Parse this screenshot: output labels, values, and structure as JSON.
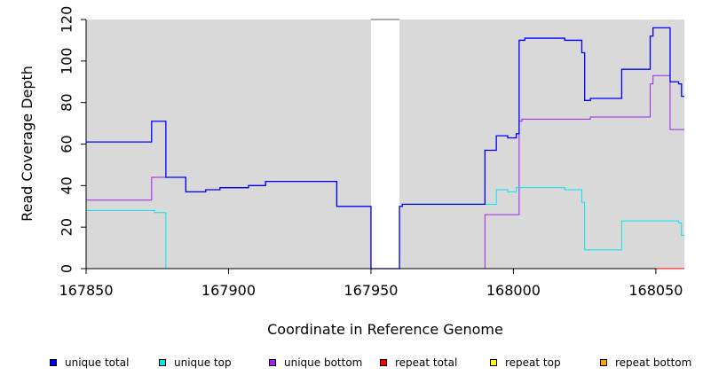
{
  "chart_data": {
    "type": "line",
    "title": "",
    "xlabel": "Coordinate in Reference Genome",
    "ylabel": "Read Coverage Depth",
    "xlim": [
      167850,
      168060
    ],
    "ylim": [
      0,
      120
    ],
    "x_ticks": [
      167850,
      167900,
      167950,
      168000,
      168050
    ],
    "y_ticks": [
      0,
      20,
      40,
      60,
      80,
      100,
      120
    ],
    "background_color": "#d9d9d9",
    "gap_region": [
      167950,
      167960
    ],
    "grid": false,
    "legend_position": "bottom",
    "series": [
      {
        "name": "unique total",
        "color": "#0000ff",
        "steps": [
          [
            167850,
            61
          ],
          [
            167873,
            71
          ],
          [
            167878,
            44
          ],
          [
            167885,
            37
          ],
          [
            167892,
            38
          ],
          [
            167897,
            39
          ],
          [
            167907,
            40
          ],
          [
            167913,
            42
          ],
          [
            167938,
            30
          ],
          [
            167950,
            0
          ],
          [
            167960,
            30
          ],
          [
            167961,
            31
          ],
          [
            167990,
            57
          ],
          [
            167994,
            64
          ],
          [
            167998,
            63
          ],
          [
            168001,
            65
          ],
          [
            168002,
            110
          ],
          [
            168004,
            111
          ],
          [
            168018,
            110
          ],
          [
            168024,
            104
          ],
          [
            168025,
            81
          ],
          [
            168027,
            82
          ],
          [
            168038,
            96
          ],
          [
            168048,
            112
          ],
          [
            168049,
            116
          ],
          [
            168055,
            90
          ],
          [
            168058,
            89
          ],
          [
            168059,
            83
          ]
        ],
        "x_end": 168060
      },
      {
        "name": "unique top",
        "color": "#00e5ee",
        "steps": [
          [
            167850,
            28
          ],
          [
            167874,
            27
          ],
          [
            167878,
            0
          ],
          [
            167960,
            30
          ],
          [
            167961,
            31
          ],
          [
            167990,
            31
          ],
          [
            167994,
            38
          ],
          [
            167998,
            37
          ],
          [
            168001,
            39
          ],
          [
            168018,
            38
          ],
          [
            168024,
            32
          ],
          [
            168025,
            9
          ],
          [
            168038,
            23
          ],
          [
            168058,
            22
          ],
          [
            168059,
            16
          ]
        ],
        "x_end": 168060
      },
      {
        "name": "unique bottom",
        "color": "#a020f0",
        "steps": [
          [
            167850,
            33
          ],
          [
            167873,
            44
          ],
          [
            167878,
            44
          ],
          [
            167885,
            37
          ],
          [
            167892,
            38
          ],
          [
            167897,
            39
          ],
          [
            167907,
            40
          ],
          [
            167913,
            42
          ],
          [
            167938,
            30
          ],
          [
            167950,
            0
          ],
          [
            167990,
            26
          ],
          [
            168002,
            71
          ],
          [
            168003,
            72
          ],
          [
            168027,
            73
          ],
          [
            168048,
            89
          ],
          [
            168049,
            93
          ],
          [
            168055,
            67
          ]
        ],
        "x_end": 168060
      },
      {
        "name": "repeat total",
        "color": "#ff0000",
        "steps": [
          [
            167850,
            0
          ]
        ],
        "x_end": 168060
      },
      {
        "name": "repeat top",
        "color": "#ffff00",
        "steps": [
          [
            167850,
            0
          ]
        ],
        "x_end": 168060
      },
      {
        "name": "repeat bottom",
        "color": "#ffa500",
        "steps": [
          [
            167850,
            0
          ]
        ],
        "x_end": 168060
      }
    ]
  }
}
